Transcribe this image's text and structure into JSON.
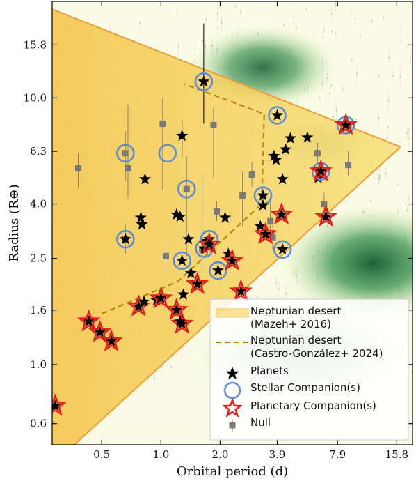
{
  "chart_data": {
    "type": "scatter",
    "xlabel": "Orbital period (d)",
    "ylabel": "Radius (R⊕)",
    "xscale": "log",
    "yscale": "log",
    "xlim": [
      0.28,
      19.0
    ],
    "ylim": [
      0.5,
      23.0
    ],
    "xticks": [
      0.5,
      1.0,
      2.0,
      3.9,
      7.9,
      15.8
    ],
    "xtick_labels": [
      "0.5",
      "1.0",
      "2.0",
      "3.9",
      "7.9",
      "15.8"
    ],
    "yticks": [
      0.6,
      1.0,
      1.6,
      2.5,
      4.0,
      6.3,
      10.0,
      15.8
    ],
    "ytick_labels": [
      "0.6",
      "1.0",
      "1.6",
      "2.5",
      "4.0",
      "6.3",
      "10.0",
      "15.8"
    ],
    "grid": false,
    "legend_position": "bottom-right",
    "colors": {
      "desert_fill": "#f5c842",
      "desert_edge": "#ef9b3b",
      "castro_line": "#b8860b",
      "planet": "#000000",
      "stellar_ring": "#5b8ed6",
      "planetary_ring": "#e81c1c",
      "null": "#7a7a7a",
      "density_green": "#1e6b36",
      "background_tint": "#fafbe0"
    },
    "mazeh_desert": {
      "upper_boundary": [
        [
          0.28,
          21.5
        ],
        [
          16.5,
          6.55
        ]
      ],
      "lower_boundary": [
        [
          0.28,
          0.42
        ],
        [
          16.5,
          6.55
        ]
      ]
    },
    "castro_desert": [
      [
        0.5,
        1.55
      ],
      [
        1.22,
        2.05
      ],
      [
        3.25,
        4.0
      ],
      [
        3.35,
        8.7
      ],
      [
        1.3,
        11.3
      ]
    ],
    "density_regions": [
      {
        "x": 3.3,
        "y": 13.0,
        "rx": 0.38,
        "ry": 0.16,
        "strength": 0.85
      },
      {
        "x": 12.0,
        "y": 2.4,
        "rx": 0.48,
        "ry": 0.22,
        "strength": 0.95
      },
      {
        "x": 5.0,
        "y": 1.1,
        "rx": 0.55,
        "ry": 0.18,
        "strength": 0.35
      },
      {
        "x": 6.5,
        "y": 6.8,
        "rx": 0.28,
        "ry": 0.1,
        "strength": 0.25
      }
    ],
    "planets": [
      {
        "x": 0.29,
        "y": 0.7,
        "companion": "planetary"
      },
      {
        "x": 0.43,
        "y": 1.45,
        "companion": "planetary"
      },
      {
        "x": 0.49,
        "y": 1.32,
        "companion": "planetary"
      },
      {
        "x": 0.56,
        "y": 1.22,
        "companion": "planetary"
      },
      {
        "x": 0.66,
        "y": 2.95,
        "companion": "stellar"
      },
      {
        "x": 0.8,
        "y": 3.35
      },
      {
        "x": 0.79,
        "y": 3.55
      },
      {
        "x": 0.83,
        "y": 4.95
      },
      {
        "x": 0.77,
        "y": 1.65,
        "companion": "planetary"
      },
      {
        "x": 0.82,
        "y": 1.72
      },
      {
        "x": 0.95,
        "y": 1.74
      },
      {
        "x": 1.0,
        "y": 1.77,
        "companion": "planetary"
      },
      {
        "x": 1.2,
        "y": 1.6,
        "companion": "planetary"
      },
      {
        "x": 1.28,
        "y": 1.42,
        "companion": "planetary"
      },
      {
        "x": 1.25,
        "y": 1.45
      },
      {
        "x": 1.3,
        "y": 1.83
      },
      {
        "x": 1.2,
        "y": 3.65
      },
      {
        "x": 1.25,
        "y": 3.58
      },
      {
        "x": 1.28,
        "y": 7.2
      },
      {
        "x": 1.28,
        "y": 2.45,
        "companion": "stellar"
      },
      {
        "x": 1.38,
        "y": 2.95
      },
      {
        "x": 1.42,
        "y": 2.2
      },
      {
        "x": 1.53,
        "y": 2.0,
        "companion": "planetary"
      },
      {
        "x": 1.66,
        "y": 2.72,
        "companion": "stellar"
      },
      {
        "x": 1.72,
        "y": 2.9
      },
      {
        "x": 1.76,
        "y": 2.95,
        "companion": "stellar"
      },
      {
        "x": 1.76,
        "y": 2.82,
        "companion": "planetary"
      },
      {
        "x": 1.95,
        "y": 2.25,
        "companion": "stellar"
      },
      {
        "x": 2.12,
        "y": 3.55
      },
      {
        "x": 2.2,
        "y": 2.6
      },
      {
        "x": 2.3,
        "y": 2.45,
        "companion": "planetary"
      },
      {
        "x": 1.65,
        "y": 11.5,
        "companion": "stellar"
      },
      {
        "x": 2.55,
        "y": 1.88,
        "companion": "planetary"
      },
      {
        "x": 3.3,
        "y": 4.3,
        "companion": "stellar"
      },
      {
        "x": 3.3,
        "y": 3.95
      },
      {
        "x": 3.2,
        "y": 3.3
      },
      {
        "x": 3.4,
        "y": 3.08,
        "companion": "planetary"
      },
      {
        "x": 3.75,
        "y": 6.05
      },
      {
        "x": 3.85,
        "y": 5.85
      },
      {
        "x": 3.9,
        "y": 8.6,
        "companion": "stellar"
      },
      {
        "x": 4.15,
        "y": 2.7,
        "companion": "stellar"
      },
      {
        "x": 4.15,
        "y": 4.95
      },
      {
        "x": 4.1,
        "y": 3.65,
        "companion": "planetary"
      },
      {
        "x": 4.3,
        "y": 6.4
      },
      {
        "x": 4.55,
        "y": 7.05
      },
      {
        "x": 5.55,
        "y": 7.1
      },
      {
        "x": 6.3,
        "y": 5.0
      },
      {
        "x": 6.5,
        "y": 5.3,
        "companion": "stellar"
      },
      {
        "x": 6.5,
        "y": 5.3,
        "companion": "planetary"
      },
      {
        "x": 6.9,
        "y": 3.58,
        "companion": "planetary"
      },
      {
        "x": 8.7,
        "y": 7.9,
        "companion": "stellar"
      },
      {
        "x": 8.7,
        "y": 7.9,
        "companion": "planetary"
      }
    ],
    "stellar_only": [
      {
        "x": 0.66,
        "y": 6.2
      },
      {
        "x": 1.08,
        "y": 6.2
      },
      {
        "x": 1.35,
        "y": 4.55
      }
    ],
    "null": [
      {
        "x": 0.38,
        "y": 5.45,
        "yerr": [
          0.85,
          0.75
        ]
      },
      {
        "x": 0.66,
        "y": 6.2,
        "yerr": [
          1.3,
          1.25
        ]
      },
      {
        "x": 0.68,
        "y": 5.45,
        "yerr": [
          1.25,
          4.0
        ]
      },
      {
        "x": 0.66,
        "y": 2.95,
        "yerr": [
          0.35,
          0.4
        ]
      },
      {
        "x": 1.02,
        "y": 8.0,
        "yerr": [
          3.5,
          2.0
        ]
      },
      {
        "x": 1.06,
        "y": 2.55,
        "yerr": [
          0.3,
          0.35
        ]
      },
      {
        "x": 1.35,
        "y": 4.55,
        "yerr": [
          2.0,
          1.5
        ]
      },
      {
        "x": 1.62,
        "y": 2.7,
        "yerr": [
          0.5,
          2.5
        ]
      },
      {
        "x": 1.85,
        "y": 7.9,
        "yerr": [
          2.9,
          1.3
        ]
      },
      {
        "x": 1.92,
        "y": 3.75,
        "yerr": [
          0.3,
          0.35
        ]
      },
      {
        "x": 2.6,
        "y": 4.3,
        "yerr": [
          1.0,
          1.0
        ]
      },
      {
        "x": 2.9,
        "y": 5.15,
        "yerr": [
          0.5,
          0.6
        ]
      },
      {
        "x": 3.6,
        "y": 3.45,
        "yerr": [
          0.4,
          0.8
        ]
      },
      {
        "x": 3.7,
        "y": 3.0,
        "yerr": [
          0.3,
          0.35
        ]
      },
      {
        "x": 6.25,
        "y": 6.2,
        "yerr": [
          0.6,
          0.6
        ]
      },
      {
        "x": 6.75,
        "y": 4.0,
        "yerr": [
          0.35,
          0.4
        ]
      },
      {
        "x": 8.95,
        "y": 5.6,
        "yerr": [
          0.5,
          0.7
        ]
      }
    ],
    "planet_errorbars": [
      {
        "x": 1.65,
        "y": 11.5,
        "yerr": [
          3.5,
          7.5
        ]
      },
      {
        "x": 1.28,
        "y": 7.2,
        "yerr": [
          1.2,
          1.0
        ]
      }
    ],
    "legend": [
      {
        "key": "desert",
        "label": "Neptunian desert\n(Mazeh+ 2016)"
      },
      {
        "key": "castro",
        "label": "Neptunian desert\n(Castro-González+ 2024)"
      },
      {
        "key": "planets",
        "label": "Planets"
      },
      {
        "key": "stellar",
        "label": "Stellar Companion(s)"
      },
      {
        "key": "planetary",
        "label": "Planetary Companion(s)"
      },
      {
        "key": "null",
        "label": "Null"
      }
    ]
  }
}
